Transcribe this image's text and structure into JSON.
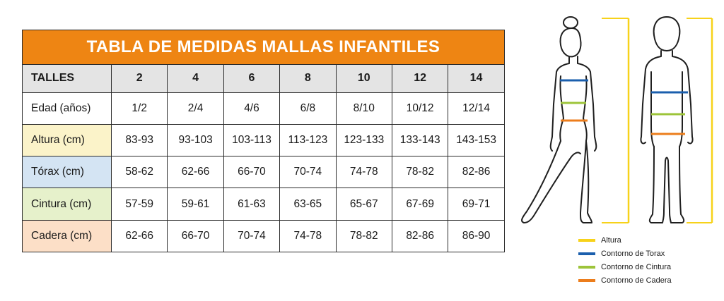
{
  "table": {
    "title": "TABLA DE MEDIDAS MALLAS INFANTILES",
    "header": {
      "label": "TALLES",
      "sizes": [
        "2",
        "4",
        "6",
        "8",
        "10",
        "12",
        "14"
      ]
    },
    "rows": [
      {
        "label": "Edad (años)",
        "values": [
          "1/2",
          "2/4",
          "4/6",
          "6/8",
          "8/10",
          "10/12",
          "12/14"
        ]
      },
      {
        "label": "Altura (cm)",
        "values": [
          "83-93",
          "93-103",
          "103-113",
          "113-123",
          "123-133",
          "133-143",
          "143-153"
        ]
      },
      {
        "label": "Tórax (cm)",
        "values": [
          "58-62",
          "62-66",
          "66-70",
          "70-74",
          "74-78",
          "78-82",
          "82-86"
        ]
      },
      {
        "label": "Cintura (cm)",
        "values": [
          "57-59",
          "59-61",
          "61-63",
          "63-65",
          "65-67",
          "67-69",
          "69-71"
        ]
      },
      {
        "label": "Cadera (cm)",
        "values": [
          "62-66",
          "66-70",
          "70-74",
          "74-78",
          "78-82",
          "82-86",
          "86-90"
        ]
      }
    ]
  },
  "colors": {
    "title_bg": "#ee8513",
    "header_bg": "#e4e4e4",
    "altura": "#f7d21a",
    "torax": "#1b5fad",
    "cintura": "#9dc43a",
    "cadera": "#ec7d1c"
  },
  "legend": {
    "items": [
      {
        "label": "Altura",
        "color": "#f7d21a"
      },
      {
        "label": "Contorno de Torax",
        "color": "#1b5fad"
      },
      {
        "label": "Contorno de Cintura",
        "color": "#9dc43a"
      },
      {
        "label": "Contorno de Cadera",
        "color": "#ec7d1c"
      }
    ]
  }
}
